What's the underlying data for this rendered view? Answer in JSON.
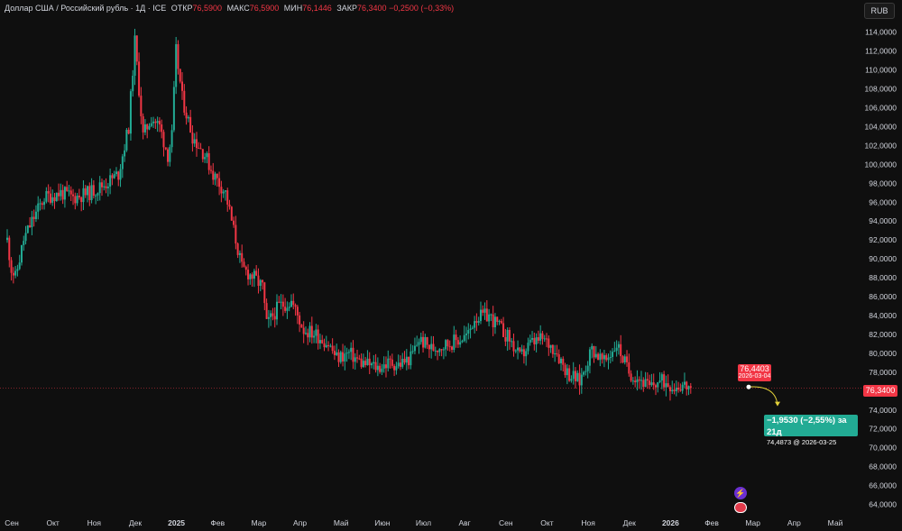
{
  "header": {
    "symbol": "Доллар США / Российский рубль · 1Д · ICE",
    "open_label": "ОТКР",
    "open": "76,5900",
    "high_label": "МАКС",
    "high": "76,5900",
    "low_label": "МИН",
    "low": "76,1446",
    "close_label": "ЗАКР",
    "close": "76,3400",
    "change": "−0,2500 (−0,33%)"
  },
  "currency_button": "RUB",
  "last_price_tag": "76,3400",
  "pinned_point": {
    "value": "76,4403",
    "date": "2026-03-04"
  },
  "forecast": {
    "change": "−1,9530 (−2,55%) за 21д",
    "target": "74,4873 @ 2026-03-25"
  },
  "colors": {
    "up": "#22ab94",
    "down": "#f23645",
    "background": "#0f0f0f",
    "text": "#d1d4dc",
    "forecast": "#22ab94"
  },
  "icons": [
    "lightning-icon",
    "us-flag-icon"
  ],
  "chart_data": {
    "type": "candlestick",
    "title": "Доллар США / Российский рубль · 1Д · ICE",
    "ylim": [
      63.0,
      115.5
    ],
    "y_ticks": [
      "64,0000",
      "66,0000",
      "68,0000",
      "70,0000",
      "72,0000",
      "74,0000",
      "76,0000",
      "78,0000",
      "80,0000",
      "82,0000",
      "84,0000",
      "86,0000",
      "88,0000",
      "90,0000",
      "92,0000",
      "94,0000",
      "96,0000",
      "98,0000",
      "100,0000",
      "102,0000",
      "104,0000",
      "106,0000",
      "108,0000",
      "110,0000",
      "112,0000",
      "114,0000"
    ],
    "x_ticks": [
      "Сен",
      "Окт",
      "Ноя",
      "Дек",
      "2025",
      "Фев",
      "Мар",
      "Апр",
      "Май",
      "Июн",
      "Июл",
      "Авг",
      "Сен",
      "Окт",
      "Ноя",
      "Дек",
      "2026",
      "Фев",
      "Мар",
      "Апр",
      "Май"
    ],
    "bold_x_ticks": [
      "2025",
      "2026"
    ],
    "x_months": 20,
    "grid": false,
    "last_close": 76.34,
    "anchors": [
      [
        0,
        92
      ],
      [
        0.1,
        89
      ],
      [
        0.2,
        88
      ],
      [
        0.4,
        92
      ],
      [
        0.6,
        94
      ],
      [
        0.9,
        96.5
      ],
      [
        1.3,
        97
      ],
      [
        1.6,
        96.5
      ],
      [
        2.0,
        97
      ],
      [
        2.4,
        98
      ],
      [
        2.7,
        99
      ],
      [
        2.95,
        104
      ],
      [
        3.1,
        113
      ],
      [
        3.3,
        103
      ],
      [
        3.5,
        105
      ],
      [
        3.7,
        104
      ],
      [
        3.9,
        101
      ],
      [
        4.0,
        103
      ],
      [
        4.1,
        112
      ],
      [
        4.25,
        107
      ],
      [
        4.5,
        103
      ],
      [
        4.8,
        101
      ],
      [
        5.0,
        99
      ],
      [
        5.3,
        97
      ],
      [
        5.5,
        93
      ],
      [
        5.7,
        89
      ],
      [
        6.0,
        88
      ],
      [
        6.2,
        87
      ],
      [
        6.3,
        83
      ],
      [
        6.6,
        85
      ],
      [
        6.9,
        85.5
      ],
      [
        7.2,
        82.5
      ],
      [
        7.5,
        82
      ],
      [
        7.8,
        81
      ],
      [
        8.0,
        79.5
      ],
      [
        8.3,
        80
      ],
      [
        8.6,
        79
      ],
      [
        9.0,
        78.5
      ],
      [
        9.3,
        79
      ],
      [
        9.5,
        78.8
      ],
      [
        9.8,
        79.5
      ],
      [
        10.0,
        81.5
      ],
      [
        10.3,
        80.5
      ],
      [
        10.7,
        81
      ],
      [
        11.0,
        81.5
      ],
      [
        11.2,
        82
      ],
      [
        11.35,
        83.8
      ],
      [
        11.7,
        84
      ],
      [
        11.9,
        83
      ],
      [
        12.2,
        81.5
      ],
      [
        12.45,
        79.5
      ],
      [
        12.7,
        81
      ],
      [
        13.0,
        81.5
      ],
      [
        13.3,
        80.5
      ],
      [
        13.6,
        78
      ],
      [
        13.9,
        77
      ],
      [
        14.2,
        80.5
      ],
      [
        14.5,
        79
      ],
      [
        14.8,
        81
      ],
      [
        15.1,
        78
      ],
      [
        15.4,
        77.2
      ],
      [
        15.6,
        76.3
      ],
      [
        15.8,
        77
      ],
      [
        16.0,
        77
      ],
      [
        16.2,
        76.5
      ],
      [
        16.4,
        76.7
      ],
      [
        16.6,
        76.34
      ]
    ],
    "forecast_points": [
      [
        "2026-03-04",
        76.4403
      ],
      [
        "2026-03-25",
        74.4873
      ]
    ]
  }
}
